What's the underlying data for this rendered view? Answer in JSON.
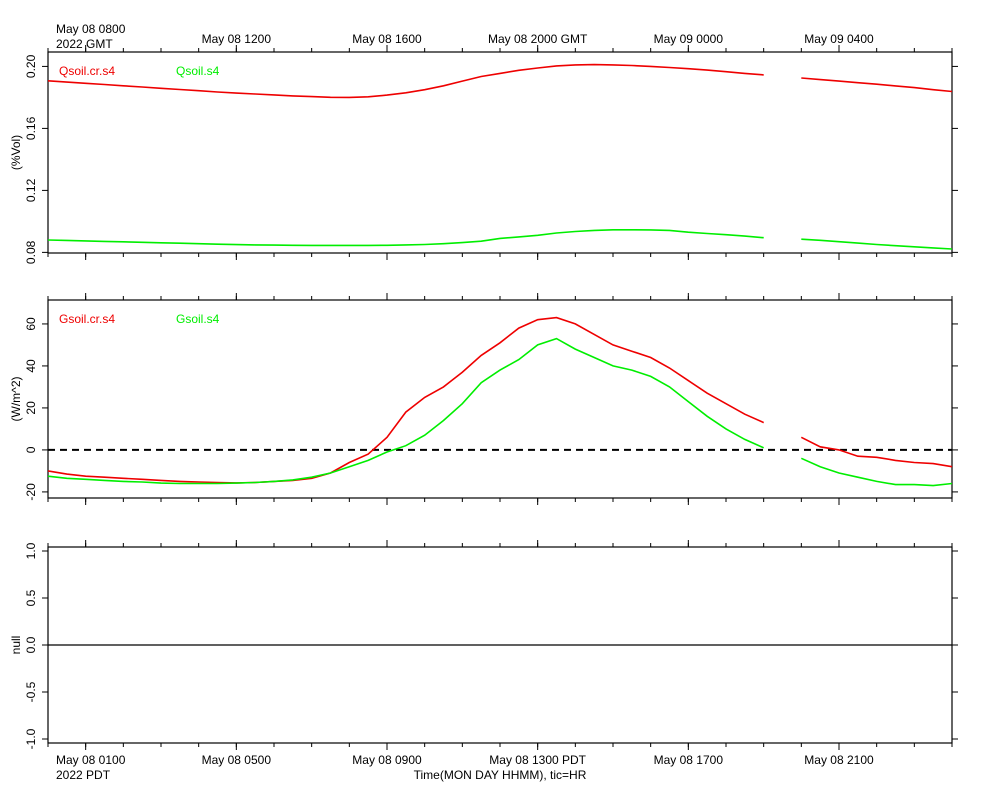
{
  "chart_data": [
    {
      "type": "line",
      "ylabel": "(%Vol)",
      "xlim": [
        "May 08 0700",
        "May 09 0700"
      ],
      "xticks": [
        "May 08 0800",
        "May 08 1200",
        "May 08 1600",
        {
          "value": "May 08 2000",
          "label": "May 08 2000 GMT"
        },
        "May 09 0000",
        "May 09 0400"
      ],
      "year_label": "2022 GMT",
      "ylim": [
        0.0796,
        0.2093
      ],
      "yticks": [
        {
          "value": 0.2,
          "label": "0.20"
        },
        0.16,
        0.12,
        0.08
      ],
      "x": [
        "May 08 0700",
        "May 08 0730",
        "May 08 0800",
        "May 08 0830",
        "May 08 0900",
        "May 08 0930",
        "May 08 1000",
        "May 08 1030",
        "May 08 1100",
        "May 08 1130",
        "May 08 1200",
        "May 08 1230",
        "May 08 1300",
        "May 08 1330",
        "May 08 1400",
        "May 08 1430",
        "May 08 1500",
        "May 08 1530",
        "May 08 1600",
        "May 08 1630",
        "May 08 1700",
        "May 08 1730",
        "May 08 1800",
        "May 08 1830",
        "May 08 1900",
        "May 08 1930",
        "May 08 2000",
        "May 08 2030",
        "May 08 2100",
        "May 08 2130",
        "May 08 2200",
        "May 08 2230",
        "May 08 2300",
        "May 08 2330",
        "May 09 0000",
        "May 09 0030",
        "May 09 0100",
        "May 09 0130",
        "May 09 0200",
        "May 09 0230",
        "May 09 0300",
        "May 09 0330",
        "May 09 0400",
        "May 09 0430",
        "May 09 0500",
        "May 09 0530",
        "May 09 0600",
        "May 09 0630",
        "May 09 0700"
      ],
      "series": [
        {
          "name": "Qsoil.cr.s4",
          "color": "#ee0000",
          "values": [
            0.1907,
            0.1899,
            0.1891,
            0.1883,
            0.1875,
            0.1867,
            0.1859,
            0.1851,
            0.1843,
            0.1835,
            0.1828,
            0.1822,
            0.1816,
            0.181,
            0.1805,
            0.1801,
            0.18,
            0.1804,
            0.1815,
            0.183,
            0.185,
            0.1875,
            0.1905,
            0.1935,
            0.1955,
            0.1975,
            0.199,
            0.2003,
            0.201,
            0.2012,
            0.201,
            0.2006,
            0.2,
            0.1993,
            0.1985,
            0.1976,
            0.1966,
            0.1955,
            0.1945,
            null,
            0.1925,
            0.1915,
            0.1905,
            0.1895,
            0.1885,
            0.1874,
            0.1863,
            0.185,
            0.1838
          ]
        },
        {
          "name": "Qsoil.s4",
          "color": "#00ee00",
          "values": [
            0.088,
            0.0877,
            0.0874,
            0.0871,
            0.0868,
            0.0865,
            0.0862,
            0.0859,
            0.0856,
            0.0853,
            0.085,
            0.0848,
            0.0847,
            0.0846,
            0.0845,
            0.0845,
            0.0845,
            0.0845,
            0.0846,
            0.0848,
            0.0851,
            0.0856,
            0.0863,
            0.0872,
            0.089,
            0.09,
            0.091,
            0.0925,
            0.0935,
            0.0942,
            0.0946,
            0.0946,
            0.0945,
            0.0942,
            0.093,
            0.0922,
            0.0914,
            0.0905,
            0.0895,
            null,
            0.0885,
            0.0878,
            0.0869,
            0.086,
            0.0851,
            0.0843,
            0.0836,
            0.0829,
            0.0822
          ]
        }
      ]
    },
    {
      "type": "line",
      "ylabel": "(W/m^2)",
      "xlim": [
        "May 08 0700",
        "May 09 0700"
      ],
      "ylim": [
        -22.9,
        71.4
      ],
      "yticks": [
        60,
        40,
        20,
        0,
        -20
      ],
      "hline": 0,
      "hline_dashed": true,
      "x": [
        "May 08 0700",
        "May 08 0730",
        "May 08 0800",
        "May 08 0830",
        "May 08 0900",
        "May 08 0930",
        "May 08 1000",
        "May 08 1030",
        "May 08 1100",
        "May 08 1130",
        "May 08 1200",
        "May 08 1230",
        "May 08 1300",
        "May 08 1330",
        "May 08 1400",
        "May 08 1430",
        "May 08 1500",
        "May 08 1530",
        "May 08 1600",
        "May 08 1630",
        "May 08 1700",
        "May 08 1730",
        "May 08 1800",
        "May 08 1830",
        "May 08 1900",
        "May 08 1930",
        "May 08 2000",
        "May 08 2030",
        "May 08 2100",
        "May 08 2130",
        "May 08 2200",
        "May 08 2230",
        "May 08 2300",
        "May 08 2330",
        "May 09 0000",
        "May 09 0030",
        "May 09 0100",
        "May 09 0130",
        "May 09 0200",
        "May 09 0230",
        "May 09 0300",
        "May 09 0330",
        "May 09 0400",
        "May 09 0430",
        "May 09 0500",
        "May 09 0530",
        "May 09 0600",
        "May 09 0630",
        "May 09 0700"
      ],
      "series": [
        {
          "name": "Gsoil.cr.s4",
          "color": "#ee0000",
          "values": [
            -10,
            -11.5,
            -12.5,
            -13,
            -13.5,
            -14,
            -14.5,
            -15,
            -15.3,
            -15.5,
            -15.7,
            -15.5,
            -15,
            -14.5,
            -13.5,
            -11,
            -6,
            -2,
            6,
            18,
            25,
            30,
            37,
            45,
            51,
            58,
            62,
            63,
            60,
            55,
            50,
            47,
            44,
            39,
            33,
            27,
            22,
            17,
            13,
            null,
            6,
            1.5,
            0,
            -3,
            -3.5,
            -5,
            -6,
            -6.5,
            -8
          ]
        },
        {
          "name": "Gsoil.s4",
          "color": "#00ee00",
          "values": [
            -12.5,
            -13.5,
            -14,
            -14.5,
            -15,
            -15.3,
            -15.8,
            -16,
            -16,
            -16,
            -15.8,
            -15.5,
            -15,
            -14.3,
            -13,
            -11,
            -8,
            -5,
            -1,
            2,
            7,
            14,
            22,
            32,
            38,
            43,
            50,
            53,
            48,
            44,
            40,
            38,
            35,
            30,
            23,
            16,
            10,
            5,
            1,
            null,
            -4,
            -8,
            -11,
            -13,
            -15,
            -16.5,
            -16.5,
            -17,
            -16
          ]
        }
      ]
    },
    {
      "type": "line",
      "ylabel": "null",
      "xlim": [
        "May 08 0700",
        "May 09 0700"
      ],
      "xticks": [
        {
          "value": "May 08 0800",
          "label": "May 08 0100"
        },
        {
          "value": "May 08 1200",
          "label": "May 08 0500"
        },
        {
          "value": "May 08 1600",
          "label": "May 08 0900"
        },
        {
          "value": "May 08 2000",
          "label": "May 08 1300 PDT"
        },
        {
          "value": "May 09 0000",
          "label": "May 08 1700"
        },
        {
          "value": "May 09 0400",
          "label": "May 08 2100"
        }
      ],
      "year_label": "2022 PDT",
      "xlabel": "Time(MON DAY HHMM), tic=HR",
      "ylim": [
        -1.0426,
        1.0426
      ],
      "yticks": [
        {
          "value": 1,
          "label": "1.0"
        },
        {
          "value": 0.5,
          "label": "0.5"
        },
        {
          "value": 0,
          "label": "0.0"
        },
        {
          "value": -0.5,
          "label": "-0.5"
        },
        {
          "value": -1,
          "label": "-1.0"
        }
      ],
      "hline": 0,
      "hline_dashed": false,
      "series": []
    }
  ]
}
